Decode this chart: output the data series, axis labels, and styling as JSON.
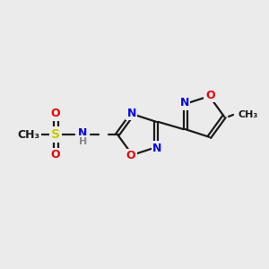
{
  "background_color": "#ebebeb",
  "bond_color": "#1a1a1a",
  "atom_colors": {
    "N": "#0000ee",
    "O": "#ee0000",
    "S": "#cccc00",
    "H": "#888888",
    "C": "#1a1a1a"
  },
  "figsize": [
    3.0,
    3.0
  ],
  "dpi": 100
}
